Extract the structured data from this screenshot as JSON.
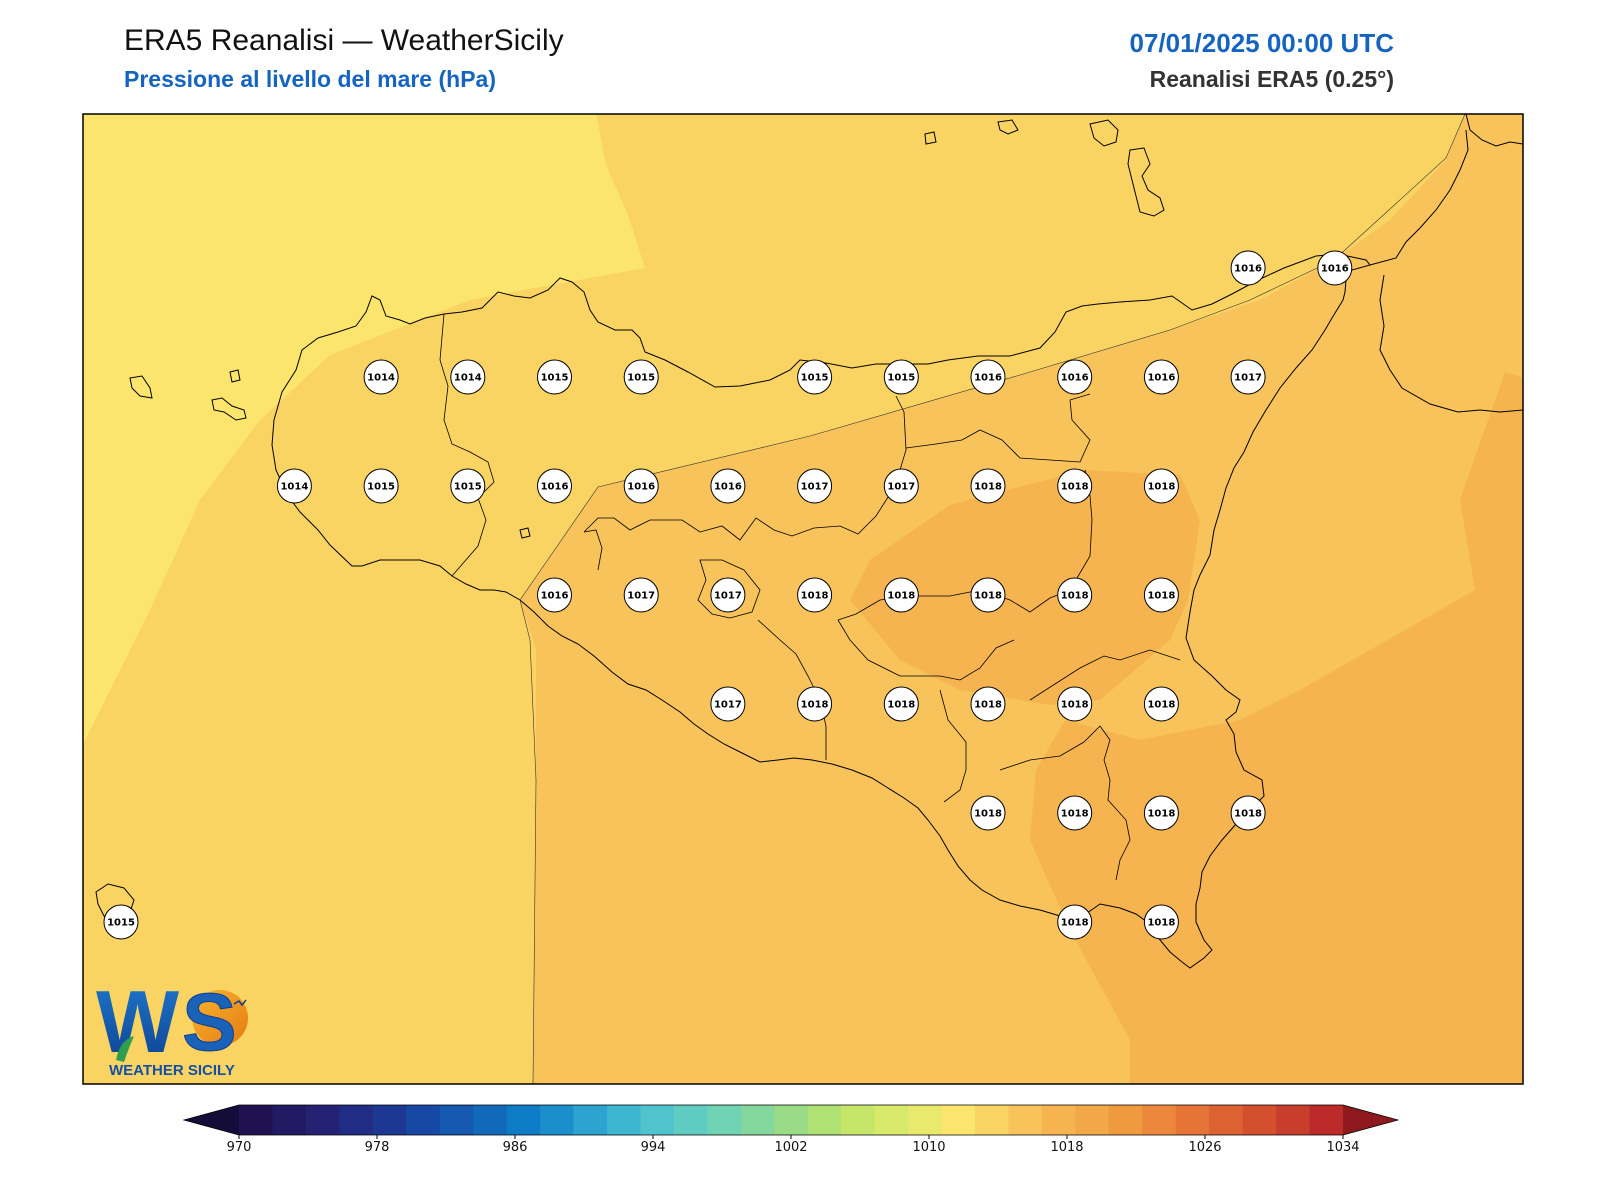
{
  "header": {
    "title": "ERA5 Reanalisi — WeatherSicily",
    "subtitle": "Pressione al livello del mare (hPa)",
    "datetime": "07/01/2025 00:00 UTC",
    "source": "Reanalisi ERA5 (0.25°)"
  },
  "logo": {
    "mark": "WS",
    "name": "WEATHER SICILY"
  },
  "colors": {
    "accent": "#1565c0",
    "fill_1014": "#fce56c",
    "fill_1015": "#fad462",
    "fill_1016": "#f7c35a",
    "fill_1017": "#f5b44f",
    "fill_1018": "#f2a848",
    "coast": "#000000"
  },
  "stations": [
    {
      "value": "1016",
      "row": 0,
      "col": 13
    },
    {
      "value": "1016",
      "row": 0,
      "col": 14
    },
    {
      "value": "1014",
      "row": 1,
      "col": 3
    },
    {
      "value": "1014",
      "row": 1,
      "col": 4
    },
    {
      "value": "1015",
      "row": 1,
      "col": 5
    },
    {
      "value": "1015",
      "row": 1,
      "col": 6
    },
    {
      "value": "1015",
      "row": 1,
      "col": 8
    },
    {
      "value": "1015",
      "row": 1,
      "col": 9
    },
    {
      "value": "1016",
      "row": 1,
      "col": 10
    },
    {
      "value": "1016",
      "row": 1,
      "col": 11
    },
    {
      "value": "1016",
      "row": 1,
      "col": 12
    },
    {
      "value": "1017",
      "row": 1,
      "col": 13
    },
    {
      "value": "1014",
      "row": 2,
      "col": 2
    },
    {
      "value": "1015",
      "row": 2,
      "col": 3
    },
    {
      "value": "1015",
      "row": 2,
      "col": 4
    },
    {
      "value": "1016",
      "row": 2,
      "col": 5
    },
    {
      "value": "1016",
      "row": 2,
      "col": 6
    },
    {
      "value": "1016",
      "row": 2,
      "col": 7
    },
    {
      "value": "1017",
      "row": 2,
      "col": 8
    },
    {
      "value": "1017",
      "row": 2,
      "col": 9
    },
    {
      "value": "1018",
      "row": 2,
      "col": 10
    },
    {
      "value": "1018",
      "row": 2,
      "col": 11
    },
    {
      "value": "1018",
      "row": 2,
      "col": 12
    },
    {
      "value": "1016",
      "row": 3,
      "col": 5
    },
    {
      "value": "1017",
      "row": 3,
      "col": 6
    },
    {
      "value": "1017",
      "row": 3,
      "col": 7
    },
    {
      "value": "1018",
      "row": 3,
      "col": 8
    },
    {
      "value": "1018",
      "row": 3,
      "col": 9
    },
    {
      "value": "1018",
      "row": 3,
      "col": 10
    },
    {
      "value": "1018",
      "row": 3,
      "col": 11
    },
    {
      "value": "1018",
      "row": 3,
      "col": 12
    },
    {
      "value": "1017",
      "row": 4,
      "col": 7
    },
    {
      "value": "1018",
      "row": 4,
      "col": 8
    },
    {
      "value": "1018",
      "row": 4,
      "col": 9
    },
    {
      "value": "1018",
      "row": 4,
      "col": 10
    },
    {
      "value": "1018",
      "row": 4,
      "col": 11
    },
    {
      "value": "1018",
      "row": 4,
      "col": 12
    },
    {
      "value": "1018",
      "row": 5,
      "col": 10
    },
    {
      "value": "1018",
      "row": 5,
      "col": 11
    },
    {
      "value": "1018",
      "row": 5,
      "col": 12
    },
    {
      "value": "1018",
      "row": 5,
      "col": 13
    },
    {
      "value": "1015",
      "row": 6,
      "col": 0
    },
    {
      "value": "1018",
      "row": 6,
      "col": 11
    },
    {
      "value": "1018",
      "row": 6,
      "col": 12
    }
  ],
  "colorbar": {
    "min": 970,
    "max": 1034,
    "step": 2,
    "ticks": [
      "970",
      "978",
      "986",
      "994",
      "1002",
      "1010",
      "1018",
      "1026",
      "1034"
    ],
    "colors": [
      "#221150",
      "#241a63",
      "#252274",
      "#212c85",
      "#1c3893",
      "#1748a3",
      "#1558b0",
      "#1169bb",
      "#0e7bc6",
      "#1a8fcc",
      "#2ca3d1",
      "#3db6d2",
      "#50c3cc",
      "#5fcbc1",
      "#6fd2b2",
      "#83d69c",
      "#99db86",
      "#b0e173",
      "#c6e66a",
      "#d8ea6c",
      "#e8ea6e",
      "#fce56c",
      "#fad462",
      "#f7c35a",
      "#f5b44f",
      "#f2a848",
      "#f09a3f",
      "#ec873b",
      "#e57436",
      "#dd6231",
      "#d44f2e",
      "#c93d2c",
      "#bc2b29"
    ],
    "under_color": "#140d3a",
    "over_color": "#8e1a1f"
  }
}
